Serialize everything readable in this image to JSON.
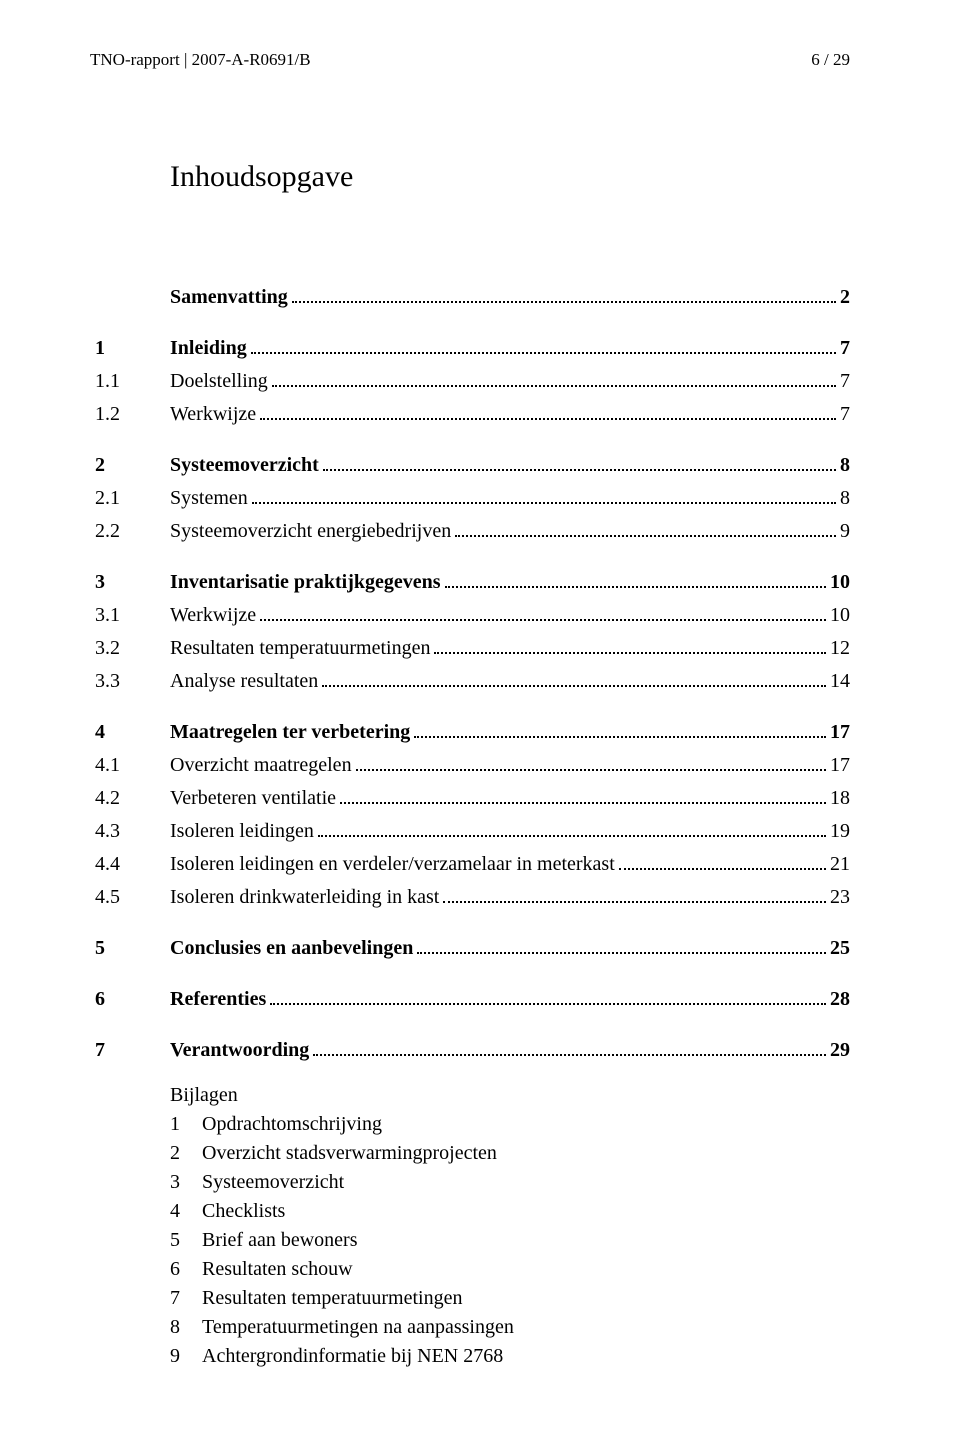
{
  "header": {
    "left": "TNO-rapport | 2007-A-R0691/B",
    "right": "6 / 29"
  },
  "title": "Inhoudsopgave",
  "toc": [
    {
      "type": "row",
      "bold": true,
      "num": "",
      "label": "Samenvatting",
      "page": "2"
    },
    {
      "type": "spacer"
    },
    {
      "type": "row",
      "bold": true,
      "num": "1",
      "label": "Inleiding",
      "page": "7"
    },
    {
      "type": "row",
      "bold": false,
      "num": "1.1",
      "label": "Doelstelling",
      "page": "7"
    },
    {
      "type": "row",
      "bold": false,
      "num": "1.2",
      "label": "Werkwijze",
      "page": "7"
    },
    {
      "type": "spacer"
    },
    {
      "type": "row",
      "bold": true,
      "num": "2",
      "label": "Systeemoverzicht",
      "page": "8"
    },
    {
      "type": "row",
      "bold": false,
      "num": "2.1",
      "label": "Systemen",
      "page": "8"
    },
    {
      "type": "row",
      "bold": false,
      "num": "2.2",
      "label": "Systeemoverzicht energiebedrijven",
      "page": "9"
    },
    {
      "type": "spacer"
    },
    {
      "type": "row",
      "bold": true,
      "num": "3",
      "label": "Inventarisatie praktijkgegevens",
      "page": "10"
    },
    {
      "type": "row",
      "bold": false,
      "num": "3.1",
      "label": "Werkwijze",
      "page": "10"
    },
    {
      "type": "row",
      "bold": false,
      "num": "3.2",
      "label": "Resultaten temperatuurmetingen",
      "page": "12"
    },
    {
      "type": "row",
      "bold": false,
      "num": "3.3",
      "label": "Analyse resultaten",
      "page": "14"
    },
    {
      "type": "spacer"
    },
    {
      "type": "row",
      "bold": true,
      "num": "4",
      "label": "Maatregelen ter verbetering",
      "page": "17"
    },
    {
      "type": "row",
      "bold": false,
      "num": "4.1",
      "label": "Overzicht maatregelen",
      "page": "17"
    },
    {
      "type": "row",
      "bold": false,
      "num": "4.2",
      "label": "Verbeteren ventilatie",
      "page": "18"
    },
    {
      "type": "row",
      "bold": false,
      "num": "4.3",
      "label": "Isoleren leidingen",
      "page": "19"
    },
    {
      "type": "row",
      "bold": false,
      "num": "4.4",
      "label": "Isoleren leidingen en verdeler/verzamelaar in meterkast",
      "page": "21"
    },
    {
      "type": "row",
      "bold": false,
      "num": "4.5",
      "label": "Isoleren drinkwaterleiding in kast",
      "page": "23"
    },
    {
      "type": "spacer"
    },
    {
      "type": "row",
      "bold": true,
      "num": "5",
      "label": "Conclusies en aanbevelingen",
      "page": "25"
    },
    {
      "type": "spacer"
    },
    {
      "type": "row",
      "bold": true,
      "num": "6",
      "label": "Referenties",
      "page": "28"
    },
    {
      "type": "spacer"
    },
    {
      "type": "row",
      "bold": true,
      "num": "7",
      "label": "Verantwoording",
      "page": "29"
    }
  ],
  "bijlagen": {
    "heading": "Bijlagen",
    "items": [
      {
        "num": "1",
        "label": "Opdrachtomschrijving"
      },
      {
        "num": "2",
        "label": "Overzicht stadsverwarmingprojecten"
      },
      {
        "num": "3",
        "label": "Systeemoverzicht"
      },
      {
        "num": "4",
        "label": "Checklists"
      },
      {
        "num": "5",
        "label": "Brief aan bewoners"
      },
      {
        "num": "6",
        "label": "Resultaten schouw"
      },
      {
        "num": "7",
        "label": "Resultaten temperatuurmetingen"
      },
      {
        "num": "8",
        "label": "Temperatuurmetingen na aanpassingen"
      },
      {
        "num": "9",
        "label": "Achtergrondinformatie bij NEN 2768"
      }
    ]
  }
}
